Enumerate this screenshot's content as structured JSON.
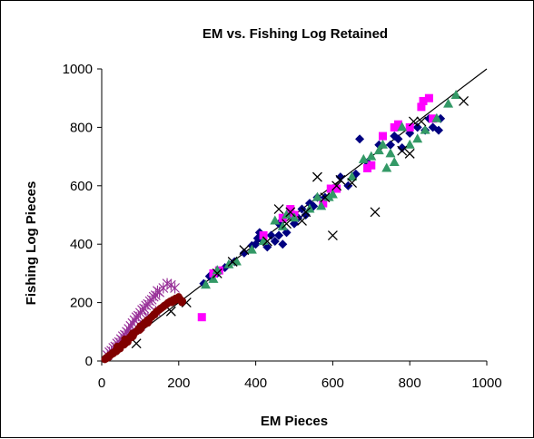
{
  "chart_data": {
    "type": "scatter",
    "title": "EM vs. Fishing Log Retained",
    "xlabel": "EM Pieces",
    "ylabel": "Fishing Log Pieces",
    "xlim": [
      0,
      1000
    ],
    "ylim": [
      0,
      1000
    ],
    "xticks": [
      "0",
      "200",
      "400",
      "600",
      "800",
      "1000"
    ],
    "yticks": [
      "0",
      "200",
      "400",
      "600",
      "800",
      "1000"
    ],
    "grid": false,
    "legend": "none",
    "reference_line": {
      "x": [
        0,
        1000
      ],
      "y": [
        0,
        1000
      ]
    },
    "series": [
      {
        "marker": "diamond",
        "color": "#000080",
        "points": [
          [
            265,
            265
          ],
          [
            280,
            290
          ],
          [
            300,
            300
          ],
          [
            320,
            320
          ],
          [
            345,
            340
          ],
          [
            370,
            370
          ],
          [
            390,
            395
          ],
          [
            405,
            420
          ],
          [
            410,
            440
          ],
          [
            420,
            410
          ],
          [
            430,
            390
          ],
          [
            440,
            430
          ],
          [
            450,
            410
          ],
          [
            460,
            430
          ],
          [
            470,
            400
          ],
          [
            480,
            440
          ],
          [
            490,
            500
          ],
          [
            500,
            470
          ],
          [
            510,
            490
          ],
          [
            520,
            520
          ],
          [
            530,
            500
          ],
          [
            540,
            540
          ],
          [
            550,
            530
          ],
          [
            560,
            560
          ],
          [
            580,
            560
          ],
          [
            600,
            590
          ],
          [
            620,
            630
          ],
          [
            640,
            600
          ],
          [
            660,
            640
          ],
          [
            670,
            760
          ],
          [
            690,
            680
          ],
          [
            720,
            740
          ],
          [
            750,
            740
          ],
          [
            760,
            770
          ],
          [
            770,
            760
          ],
          [
            780,
            730
          ],
          [
            800,
            780
          ],
          [
            820,
            800
          ],
          [
            840,
            790
          ],
          [
            850,
            830
          ],
          [
            860,
            800
          ],
          [
            875,
            790
          ],
          [
            880,
            830
          ],
          [
            400,
            400
          ],
          [
            460,
            470
          ]
        ]
      },
      {
        "marker": "square",
        "color": "#FF00FF",
        "points": [
          [
            260,
            150
          ],
          [
            290,
            300
          ],
          [
            305,
            310
          ],
          [
            420,
            430
          ],
          [
            470,
            490
          ],
          [
            490,
            520
          ],
          [
            500,
            500
          ],
          [
            575,
            540
          ],
          [
            595,
            590
          ],
          [
            610,
            590
          ],
          [
            690,
            660
          ],
          [
            700,
            670
          ],
          [
            730,
            770
          ],
          [
            760,
            800
          ],
          [
            770,
            810
          ],
          [
            800,
            800
          ],
          [
            830,
            870
          ],
          [
            835,
            890
          ],
          [
            850,
            900
          ],
          [
            860,
            830
          ]
        ]
      },
      {
        "marker": "triangle",
        "color": "#339966",
        "points": [
          [
            270,
            260
          ],
          [
            290,
            280
          ],
          [
            300,
            310
          ],
          [
            330,
            330
          ],
          [
            350,
            340
          ],
          [
            390,
            380
          ],
          [
            420,
            410
          ],
          [
            450,
            480
          ],
          [
            470,
            460
          ],
          [
            480,
            500
          ],
          [
            500,
            490
          ],
          [
            540,
            520
          ],
          [
            560,
            560
          ],
          [
            570,
            530
          ],
          [
            590,
            560
          ],
          [
            600,
            570
          ],
          [
            650,
            630
          ],
          [
            680,
            690
          ],
          [
            700,
            700
          ],
          [
            720,
            720
          ],
          [
            730,
            740
          ],
          [
            740,
            660
          ],
          [
            750,
            710
          ],
          [
            760,
            680
          ],
          [
            780,
            800
          ],
          [
            800,
            740
          ],
          [
            820,
            760
          ],
          [
            840,
            790
          ],
          [
            870,
            830
          ],
          [
            900,
            880
          ],
          [
            920,
            910
          ]
        ]
      },
      {
        "marker": "x",
        "color": "#000000",
        "points": [
          [
            90,
            60
          ],
          [
            180,
            170
          ],
          [
            220,
            200
          ],
          [
            300,
            300
          ],
          [
            340,
            340
          ],
          [
            370,
            380
          ],
          [
            430,
            410
          ],
          [
            460,
            520
          ],
          [
            480,
            470
          ],
          [
            490,
            510
          ],
          [
            520,
            480
          ],
          [
            530,
            510
          ],
          [
            560,
            630
          ],
          [
            580,
            560
          ],
          [
            600,
            430
          ],
          [
            610,
            600
          ],
          [
            620,
            620
          ],
          [
            650,
            610
          ],
          [
            710,
            510
          ],
          [
            780,
            720
          ],
          [
            800,
            710
          ],
          [
            810,
            820
          ],
          [
            830,
            820
          ],
          [
            940,
            890
          ]
        ]
      },
      {
        "marker": "star",
        "color": "#993399",
        "points": [
          [
            15,
            20
          ],
          [
            20,
            30
          ],
          [
            25,
            35
          ],
          [
            30,
            45
          ],
          [
            35,
            50
          ],
          [
            40,
            60
          ],
          [
            45,
            65
          ],
          [
            50,
            75
          ],
          [
            55,
            85
          ],
          [
            60,
            90
          ],
          [
            65,
            100
          ],
          [
            70,
            110
          ],
          [
            75,
            120
          ],
          [
            80,
            130
          ],
          [
            85,
            140
          ],
          [
            90,
            150
          ],
          [
            95,
            155
          ],
          [
            100,
            165
          ],
          [
            105,
            175
          ],
          [
            110,
            180
          ],
          [
            115,
            190
          ],
          [
            120,
            195
          ],
          [
            125,
            205
          ],
          [
            130,
            210
          ],
          [
            135,
            220
          ],
          [
            140,
            225
          ],
          [
            145,
            240
          ],
          [
            150,
            235
          ],
          [
            160,
            250
          ],
          [
            170,
            265
          ],
          [
            180,
            260
          ],
          [
            190,
            250
          ],
          [
            100,
            120
          ],
          [
            120,
            150
          ],
          [
            140,
            170
          ],
          [
            70,
            95
          ],
          [
            55,
            70
          ]
        ]
      },
      {
        "marker": "circle",
        "color": "#800000",
        "points": [
          [
            8,
            5
          ],
          [
            10,
            10
          ],
          [
            12,
            8
          ],
          [
            15,
            15
          ],
          [
            18,
            12
          ],
          [
            20,
            20
          ],
          [
            22,
            18
          ],
          [
            25,
            22
          ],
          [
            28,
            28
          ],
          [
            30,
            25
          ],
          [
            32,
            30
          ],
          [
            35,
            35
          ],
          [
            38,
            32
          ],
          [
            40,
            40
          ],
          [
            42,
            38
          ],
          [
            45,
            45
          ],
          [
            48,
            42
          ],
          [
            50,
            50
          ],
          [
            52,
            55
          ],
          [
            55,
            60
          ],
          [
            58,
            55
          ],
          [
            60,
            65
          ],
          [
            62,
            60
          ],
          [
            65,
            70
          ],
          [
            68,
            65
          ],
          [
            70,
            75
          ],
          [
            72,
            80
          ],
          [
            75,
            85
          ],
          [
            78,
            80
          ],
          [
            80,
            90
          ],
          [
            82,
            85
          ],
          [
            85,
            95
          ],
          [
            88,
            100
          ],
          [
            90,
            100
          ],
          [
            92,
            105
          ],
          [
            95,
            110
          ],
          [
            98,
            105
          ],
          [
            100,
            115
          ],
          [
            102,
            110
          ],
          [
            105,
            120
          ],
          [
            108,
            125
          ],
          [
            110,
            130
          ],
          [
            112,
            125
          ],
          [
            115,
            135
          ],
          [
            118,
            140
          ],
          [
            120,
            140
          ],
          [
            122,
            135
          ],
          [
            125,
            145
          ],
          [
            128,
            150
          ],
          [
            130,
            150
          ],
          [
            132,
            155
          ],
          [
            135,
            160
          ],
          [
            138,
            158
          ],
          [
            140,
            165
          ],
          [
            142,
            170
          ],
          [
            145,
            170
          ],
          [
            148,
            175
          ],
          [
            150,
            175
          ],
          [
            152,
            180
          ],
          [
            155,
            180
          ],
          [
            158,
            185
          ],
          [
            160,
            185
          ],
          [
            162,
            190
          ],
          [
            165,
            190
          ],
          [
            168,
            195
          ],
          [
            170,
            195
          ],
          [
            172,
            200
          ],
          [
            175,
            200
          ],
          [
            178,
            205
          ],
          [
            180,
            205
          ],
          [
            182,
            200
          ],
          [
            185,
            210
          ],
          [
            188,
            205
          ],
          [
            190,
            210
          ],
          [
            192,
            215
          ],
          [
            195,
            210
          ],
          [
            198,
            215
          ],
          [
            200,
            220
          ],
          [
            202,
            215
          ],
          [
            205,
            210
          ],
          [
            208,
            200
          ],
          [
            210,
            205
          ],
          [
            40,
            50
          ],
          [
            60,
            75
          ],
          [
            80,
            95
          ],
          [
            100,
            120
          ],
          [
            120,
            130
          ]
        ]
      }
    ]
  }
}
